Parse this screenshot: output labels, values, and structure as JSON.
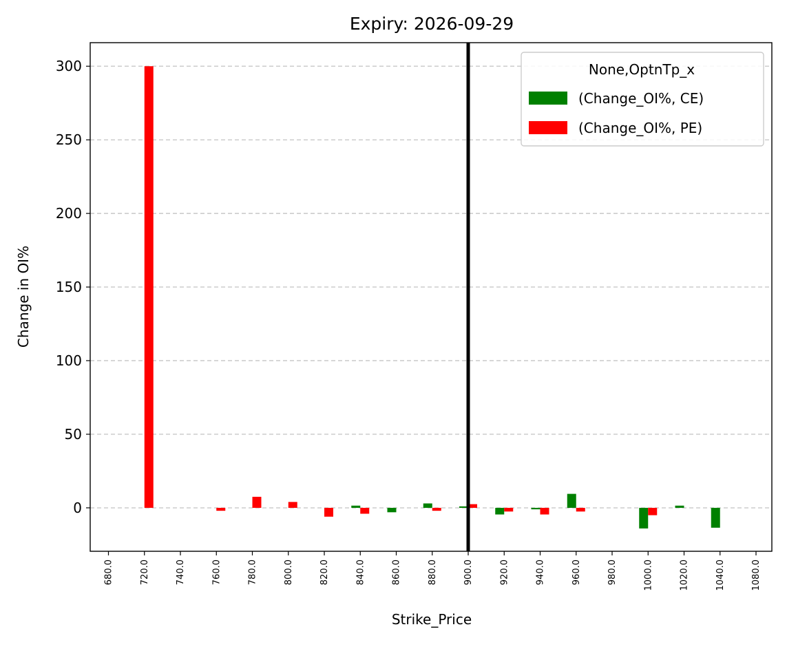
{
  "chart_data": {
    "type": "bar",
    "title": "Expiry: 2026-09-29",
    "xlabel": "Strike_Price",
    "ylabel": "Change in OI%",
    "categories": [
      "680.0",
      "720.0",
      "740.0",
      "760.0",
      "780.0",
      "800.0",
      "820.0",
      "840.0",
      "860.0",
      "880.0",
      "900.0",
      "920.0",
      "940.0",
      "960.0",
      "980.0",
      "1000.0",
      "1020.0",
      "1040.0",
      "1080.0"
    ],
    "series": [
      {
        "name": " (Change_OI%, CE)",
        "color": "#008000",
        "values": [
          0,
          0,
          0,
          0,
          0,
          0,
          0,
          1.5,
          -3,
          3,
          1,
          -4.5,
          -1,
          9.5,
          0,
          -14,
          1.5,
          -13.5,
          0
        ]
      },
      {
        "name": " (Change_OI%, PE)",
        "color": "#ff0000",
        "values": [
          0,
          300,
          0,
          -2,
          7.5,
          4,
          -6,
          -4,
          0,
          -2,
          2.5,
          -2.5,
          -4.5,
          -2.5,
          0,
          -5,
          0,
          0,
          0
        ]
      }
    ],
    "ylim": [
      -29.5,
      316
    ],
    "yticks": [
      0,
      50,
      100,
      150,
      200,
      250,
      300
    ],
    "grid": "y dashed",
    "legend": {
      "title": "None,OptnTp_x",
      "placement": "top-right"
    },
    "vline": {
      "category": "900.0",
      "color": "#000000"
    }
  }
}
